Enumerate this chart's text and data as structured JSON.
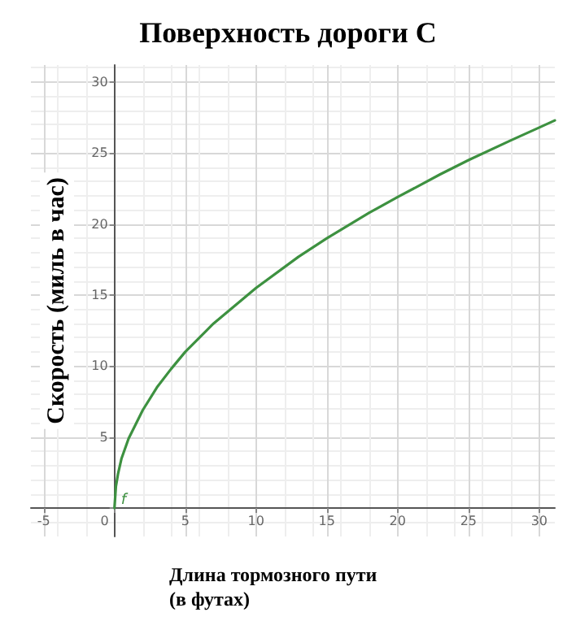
{
  "chart_data": {
    "type": "line",
    "title": "Поверхность дороги С",
    "xlabel": "Длина тормозного пути\n(в футах)",
    "ylabel": "Скорость (миль в час)",
    "x": [
      0,
      0.1,
      0.25,
      0.5,
      1,
      2,
      3,
      4,
      5,
      7,
      10,
      13,
      15,
      18,
      20,
      23,
      25,
      28,
      30,
      31.1
    ],
    "series": [
      {
        "color": "#3d9140",
        "values": [
          0,
          1.5,
          2.4,
          3.5,
          4.9,
          6.9,
          8.5,
          9.8,
          11.0,
          13.0,
          15.5,
          17.7,
          19.0,
          20.8,
          21.9,
          23.5,
          24.5,
          25.9,
          26.8,
          27.3
        ]
      }
    ],
    "annotations": [
      "f"
    ],
    "xlim": [
      -5.9,
      31.1
    ],
    "ylim": [
      -2,
      31.2
    ],
    "xticks": [
      -5,
      0,
      5,
      10,
      15,
      20,
      25,
      30
    ],
    "yticks": [
      {
        "value": 0,
        "label": null
      },
      5,
      10,
      15,
      20,
      25,
      30
    ],
    "grid": true,
    "marker": "none",
    "line_style": "solid"
  }
}
